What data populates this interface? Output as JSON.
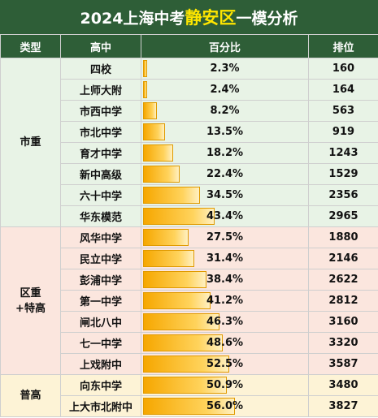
{
  "title": {
    "prefix": "2024上海中考",
    "highlight": "静安区",
    "suffix": "一模分析"
  },
  "headers": {
    "type": "类型",
    "school": "高中",
    "percent": "百分比",
    "rank": "排位"
  },
  "groups": [
    {
      "type": "市重",
      "type_lines": [
        "市重"
      ],
      "color": "#e8f3e6",
      "rows": [
        {
          "school": "四校",
          "percent": "2.3%",
          "value": 2.3,
          "rank": "160"
        },
        {
          "school": "上师大附",
          "percent": "2.4%",
          "value": 2.4,
          "rank": "164"
        },
        {
          "school": "市西中学",
          "percent": "8.2%",
          "value": 8.2,
          "rank": "563"
        },
        {
          "school": "市北中学",
          "percent": "13.5%",
          "value": 13.5,
          "rank": "919"
        },
        {
          "school": "育才中学",
          "percent": "18.2%",
          "value": 18.2,
          "rank": "1243"
        },
        {
          "school": "新中高级",
          "percent": "22.4%",
          "value": 22.4,
          "rank": "1529"
        },
        {
          "school": "六十中学",
          "percent": "34.5%",
          "value": 34.5,
          "rank": "2356"
        },
        {
          "school": "华东模范",
          "percent": "43.4%",
          "value": 43.4,
          "rank": "2965"
        }
      ]
    },
    {
      "type": "区重+特高",
      "type_lines": [
        "区重",
        "+特高"
      ],
      "color": "#fbe6de",
      "rows": [
        {
          "school": "风华中学",
          "percent": "27.5%",
          "value": 27.5,
          "rank": "1880"
        },
        {
          "school": "民立中学",
          "percent": "31.4%",
          "value": 31.4,
          "rank": "2146"
        },
        {
          "school": "彭浦中学",
          "percent": "38.4%",
          "value": 38.4,
          "rank": "2622"
        },
        {
          "school": "第一中学",
          "percent": "41.2%",
          "value": 41.2,
          "rank": "2812"
        },
        {
          "school": "闸北八中",
          "percent": "46.3%",
          "value": 46.3,
          "rank": "3160"
        },
        {
          "school": "七一中学",
          "percent": "48.6%",
          "value": 48.6,
          "rank": "3320"
        },
        {
          "school": "上戏附中",
          "percent": "52.5%",
          "value": 52.5,
          "rank": "3587"
        }
      ]
    },
    {
      "type": "普高",
      "type_lines": [
        "普高"
      ],
      "color": "#fdf3d6",
      "rows": [
        {
          "school": "向东中学",
          "percent": "50.9%",
          "value": 50.9,
          "rank": "3480"
        },
        {
          "school": "上大市北附中",
          "percent": "56.0%",
          "value": 56.0,
          "rank": "3827"
        }
      ]
    }
  ]
}
